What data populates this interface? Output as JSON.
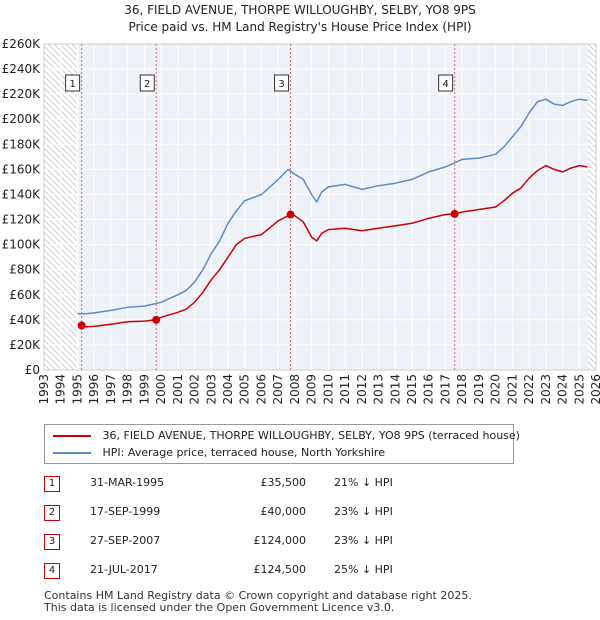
{
  "chart_data": {
    "type": "line",
    "title": "36, FIELD AVENUE, THORPE WILLOUGHBY, SELBY, YO8 9PS",
    "subtitle": "Price paid vs. HM Land Registry's House Price Index (HPI)",
    "xlim": [
      1993,
      2026
    ],
    "ylim": [
      0,
      260000
    ],
    "y_ticks": [
      0,
      20000,
      40000,
      60000,
      80000,
      100000,
      120000,
      140000,
      160000,
      180000,
      200000,
      220000,
      240000,
      260000
    ],
    "y_tick_labels": [
      "£0",
      "£20K",
      "£40K",
      "£60K",
      "£80K",
      "£100K",
      "£120K",
      "£140K",
      "£160K",
      "£180K",
      "£200K",
      "£220K",
      "£240K",
      "£260K"
    ],
    "x_ticks": [
      1993,
      1994,
      1995,
      1996,
      1997,
      1998,
      1999,
      2000,
      2001,
      2002,
      2003,
      2004,
      2005,
      2006,
      2007,
      2008,
      2009,
      2010,
      2011,
      2012,
      2013,
      2014,
      2015,
      2016,
      2017,
      2018,
      2019,
      2020,
      2021,
      2022,
      2023,
      2024,
      2025,
      2026
    ],
    "x_tick_labels": [
      "1993",
      "1994",
      "1995",
      "1996",
      "1997",
      "1998",
      "1999",
      "2000",
      "2001",
      "2002",
      "2003",
      "2004",
      "2005",
      "2006",
      "2007",
      "2008",
      "2009",
      "2010",
      "2011",
      "2012",
      "2013",
      "2014",
      "2015",
      "2016",
      "2017",
      "2018",
      "2019",
      "2020",
      "2021",
      "2022",
      "2023",
      "2024",
      "2025",
      "2026"
    ],
    "grid": true,
    "data_end": 2025.5,
    "series": [
      {
        "name": "36, FIELD AVENUE, THORPE WILLOUGHBY, SELBY, YO8 9PS (terraced house)",
        "color": "#cc0000",
        "x": [
          1995.25,
          1995.5,
          1996,
          1997,
          1998,
          1999,
          1999.71,
          2000,
          2001,
          2001.5,
          2002,
          2002.5,
          2003,
          2003.5,
          2004,
          2004.5,
          2005,
          2006,
          2007,
          2007.74,
          2008,
          2008.5,
          2009,
          2009.3,
          2009.6,
          2010,
          2011,
          2012,
          2013,
          2014,
          2015,
          2016,
          2017,
          2017.55,
          2018,
          2019,
          2020,
          2020.5,
          2021,
          2021.5,
          2022,
          2022.5,
          2023,
          2023.5,
          2024,
          2024.5,
          2025,
          2025.5
        ],
        "values": [
          35500,
          34500,
          34800,
          36500,
          38500,
          39000,
          40000,
          42000,
          46000,
          48500,
          54000,
          62000,
          72000,
          80000,
          90000,
          100000,
          105000,
          108000,
          119000,
          124000,
          123000,
          118000,
          106000,
          103000,
          109000,
          112000,
          113000,
          111000,
          113000,
          115000,
          117000,
          121000,
          124000,
          124500,
          126000,
          128000,
          130000,
          135000,
          141000,
          145000,
          153000,
          159000,
          163000,
          160000,
          158000,
          161000,
          163000,
          162000
        ]
      },
      {
        "name": "HPI: Average price, terraced house, North Yorkshire",
        "color": "#5b8cc8",
        "x": [
          1995,
          1995.5,
          1996,
          1997,
          1998,
          1999,
          2000,
          2001,
          2001.5,
          2002,
          2002.5,
          2003,
          2003.5,
          2004,
          2004.5,
          2005,
          2006,
          2007,
          2007.6,
          2008,
          2008.5,
          2009,
          2009.3,
          2009.6,
          2010,
          2011,
          2012,
          2013,
          2014,
          2015,
          2016,
          2017,
          2018,
          2019,
          2020,
          2020.5,
          2021,
          2021.5,
          2022,
          2022.5,
          2023,
          2023.5,
          2024,
          2024.5,
          2025,
          2025.5
        ],
        "values": [
          45000,
          44800,
          45500,
          47500,
          50000,
          51000,
          54000,
          60000,
          63500,
          70000,
          80000,
          93000,
          103000,
          117000,
          127000,
          135000,
          140000,
          152000,
          160000,
          156000,
          152000,
          140000,
          134000,
          142000,
          146000,
          148000,
          144000,
          147000,
          149000,
          152000,
          158000,
          162000,
          168000,
          169000,
          172000,
          178000,
          186000,
          194000,
          205000,
          214000,
          216000,
          212000,
          211000,
          214000,
          216000,
          215000
        ]
      }
    ],
    "sales": [
      {
        "label": "1",
        "x": 1995.25,
        "value": 35500
      },
      {
        "label": "2",
        "x": 1999.71,
        "value": 40000
      },
      {
        "label": "3",
        "x": 2007.74,
        "value": 124000
      },
      {
        "label": "4",
        "x": 2017.55,
        "value": 124500
      }
    ]
  },
  "legend": {
    "property_label": "36, FIELD AVENUE, THORPE WILLOUGHBY, SELBY, YO8 9PS (terraced house)",
    "property_color": "#cc0000",
    "hpi_label": "HPI: Average price, terraced house, North Yorkshire",
    "hpi_color": "#5b8cc8"
  },
  "sales_table": [
    {
      "num": "1",
      "date": "31-MAR-1995",
      "price": "£35,500",
      "hpi": "21% ↓ HPI"
    },
    {
      "num": "2",
      "date": "17-SEP-1999",
      "price": "£40,000",
      "hpi": "23% ↓ HPI"
    },
    {
      "num": "3",
      "date": "27-SEP-2007",
      "price": "£124,000",
      "hpi": "23% ↓ HPI"
    },
    {
      "num": "4",
      "date": "21-JUL-2017",
      "price": "£124,500",
      "hpi": "25% ↓ HPI"
    }
  ],
  "footer": {
    "line1": "Contains HM Land Registry data © Crown copyright and database right 2025.",
    "line2": "This data is licensed under the Open Government Licence v3.0."
  }
}
